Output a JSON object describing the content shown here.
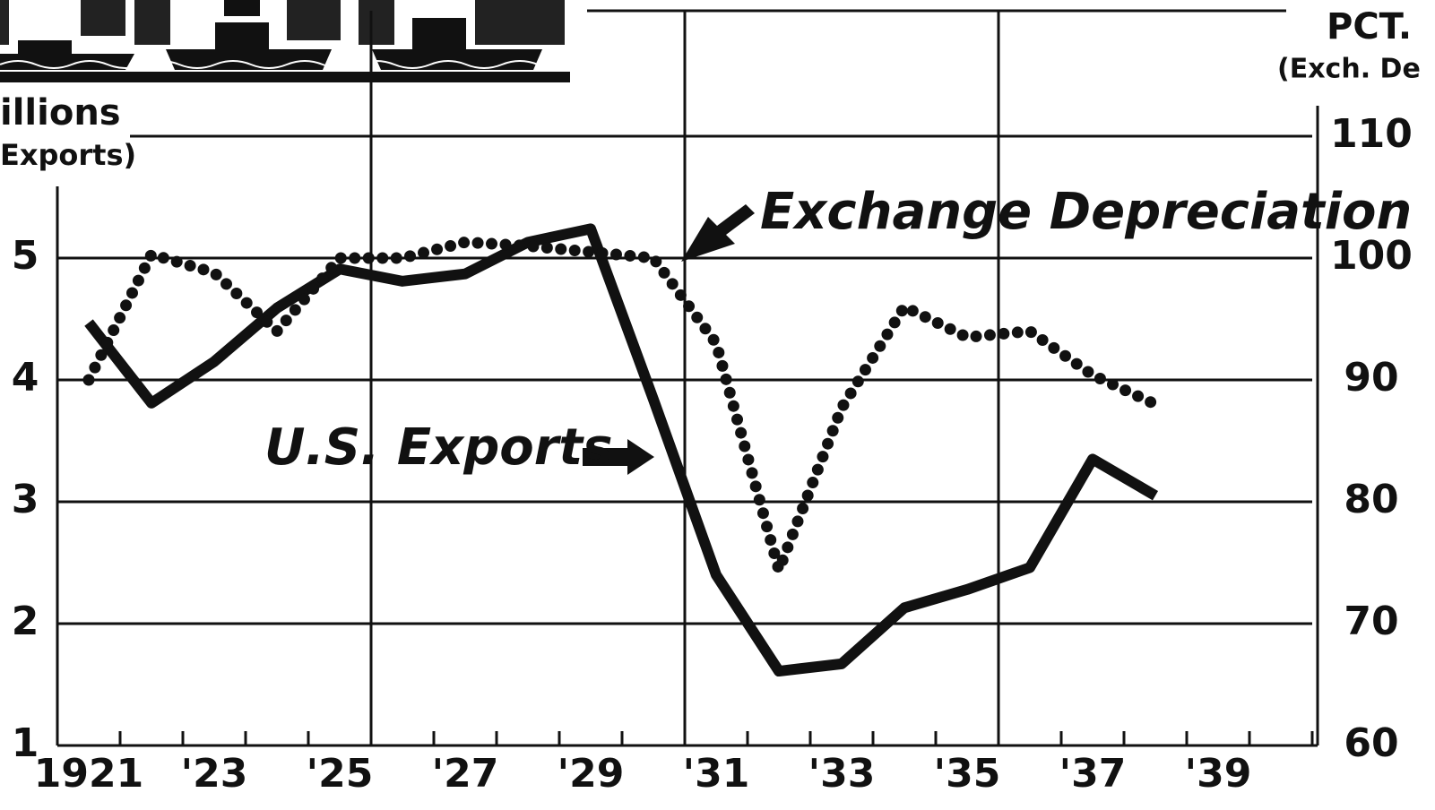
{
  "chart_data": {
    "type": "line",
    "ylabel": "illions",
    "ylabel_sub": "Exports)",
    "y2label": "PCT.",
    "y2label_sub": "(Exch. De",
    "annotations": [
      "Exchange Depreciation",
      "U.S. Exports"
    ],
    "x": [
      1921,
      1922,
      1923,
      1924,
      1925,
      1926,
      1927,
      1928,
      1929,
      1930,
      1931,
      1932,
      1933,
      1934,
      1935,
      1936,
      1937,
      1938
    ],
    "series": [
      {
        "name": "U.S. Exports",
        "color": "#111111",
        "style": "solid",
        "values": [
          4.47,
          3.81,
          4.15,
          4.59,
          4.91,
          4.81,
          4.87,
          5.13,
          5.24,
          3.84,
          2.4,
          1.61,
          1.67,
          2.13,
          2.28,
          2.46,
          3.35,
          3.05
        ]
      },
      {
        "name": "Exchange Depreciation",
        "color": "#111111",
        "style": "dotted",
        "axis": "y2",
        "values": [
          90,
          100.3,
          98.8,
          94,
          100,
          100,
          101.3,
          101,
          100.5,
          100,
          93,
          74.4,
          87.7,
          96,
          93.5,
          94,
          90.4,
          88
        ]
      }
    ],
    "xlim": [
      1920.5,
      1940.5
    ],
    "xticks": [
      {
        "value": 1921,
        "label": "1921"
      },
      {
        "value": 1923,
        "label": "'23"
      },
      {
        "value": 1925,
        "label": "'25"
      },
      {
        "value": 1927,
        "label": "'27"
      },
      {
        "value": 1929,
        "label": "'29"
      },
      {
        "value": 1931,
        "label": "'31"
      },
      {
        "value": 1933,
        "label": "'33"
      },
      {
        "value": 1935,
        "label": "'35"
      },
      {
        "value": 1937,
        "label": "'37"
      },
      {
        "value": 1939,
        "label": "'39"
      }
    ],
    "xtick_marks": [
      1920.5,
      1921.5,
      1922.5,
      1923.5,
      1924.5,
      1925.5,
      1926.5,
      1927.5,
      1928.5,
      1929.5,
      1930.5,
      1931.5,
      1932.5,
      1933.5,
      1934.5,
      1935.5,
      1936.5,
      1937.5,
      1938.5,
      1939.5,
      1940.5
    ],
    "xgrid": [
      1925.5,
      1930.5,
      1935.5
    ],
    "ylim": [
      1,
      6
    ],
    "yticks": [
      1,
      2,
      3,
      4,
      5
    ],
    "y2lim": [
      60,
      110
    ],
    "y2ticks": [
      60,
      70,
      80,
      90,
      100,
      110
    ],
    "grid": true
  }
}
